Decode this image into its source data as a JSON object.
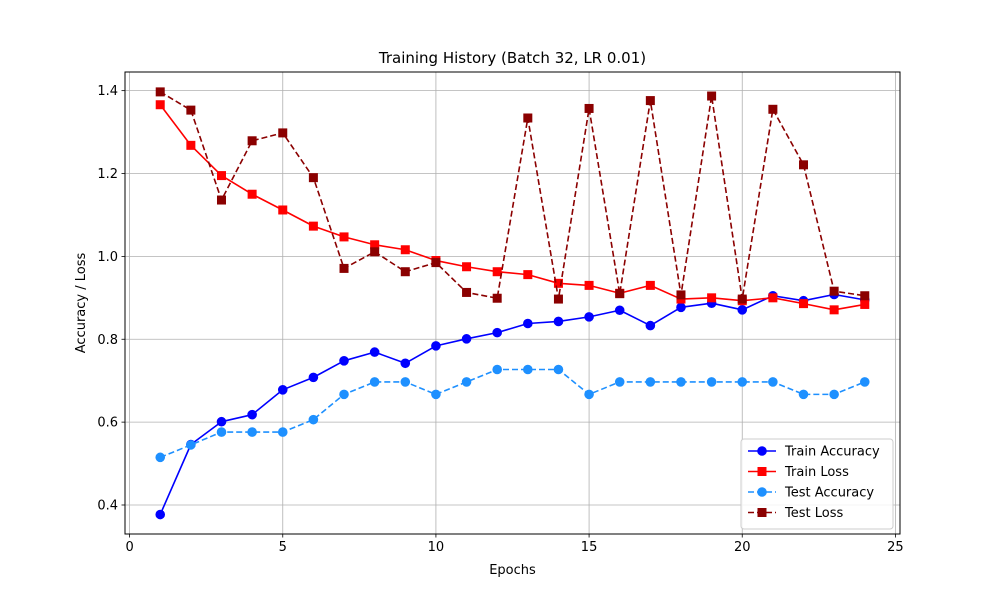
{
  "chart_data": {
    "type": "line",
    "title": "Training History (Batch 32, LR 0.01)",
    "xlabel": "Epochs",
    "ylabel": "Accuracy / Loss",
    "xlim": [
      -0.15,
      25.15
    ],
    "ylim": [
      0.33,
      1.445
    ],
    "xticks": [
      0,
      5,
      10,
      15,
      20,
      25
    ],
    "yticks": [
      0.4,
      0.6,
      0.8,
      1.0,
      1.2,
      1.4
    ],
    "xtick_labels": [
      "0",
      "5",
      "10",
      "15",
      "20",
      "25"
    ],
    "ytick_labels": [
      "0.4",
      "0.6",
      "0.8",
      "1.0",
      "1.2",
      "1.4"
    ],
    "grid": true,
    "legend_position": "lower-right",
    "x": [
      1,
      2,
      3,
      4,
      5,
      6,
      7,
      8,
      9,
      10,
      11,
      12,
      13,
      14,
      15,
      16,
      17,
      18,
      19,
      20,
      21,
      22,
      23,
      24
    ],
    "series": [
      {
        "name": "Train Accuracy",
        "color": "#0000ff",
        "line": "solid",
        "marker": "circle",
        "values": [
          0.377,
          0.546,
          0.601,
          0.618,
          0.678,
          0.708,
          0.748,
          0.769,
          0.742,
          0.784,
          0.801,
          0.816,
          0.838,
          0.843,
          0.854,
          0.87,
          0.833,
          0.877,
          0.887,
          0.871,
          0.905,
          0.893,
          0.908,
          0.895
        ]
      },
      {
        "name": "Train Loss",
        "color": "#ff0000",
        "line": "solid",
        "marker": "square",
        "values": [
          1.366,
          1.268,
          1.195,
          1.15,
          1.112,
          1.073,
          1.047,
          1.028,
          1.016,
          0.99,
          0.975,
          0.963,
          0.956,
          0.935,
          0.93,
          0.911,
          0.93,
          0.897,
          0.9,
          0.893,
          0.9,
          0.886,
          0.871,
          0.884
        ]
      },
      {
        "name": "Test Accuracy",
        "color": "#1e90ff",
        "line": "dashed",
        "marker": "circle",
        "values": [
          0.515,
          0.545,
          0.576,
          0.576,
          0.576,
          0.606,
          0.667,
          0.697,
          0.697,
          0.667,
          0.697,
          0.727,
          0.727,
          0.727,
          0.667,
          0.697,
          0.697,
          0.697,
          0.697,
          0.697,
          0.697,
          0.667,
          0.667,
          0.697
        ]
      },
      {
        "name": "Test Loss",
        "color": "#8b0000",
        "line": "dashed",
        "marker": "square",
        "values": [
          1.397,
          1.353,
          1.136,
          1.279,
          1.298,
          1.19,
          0.971,
          1.011,
          0.963,
          0.985,
          0.913,
          0.899,
          1.334,
          0.897,
          1.357,
          0.91,
          1.376,
          0.907,
          1.387,
          0.897,
          1.355,
          1.221,
          0.916,
          0.905
        ]
      }
    ]
  }
}
